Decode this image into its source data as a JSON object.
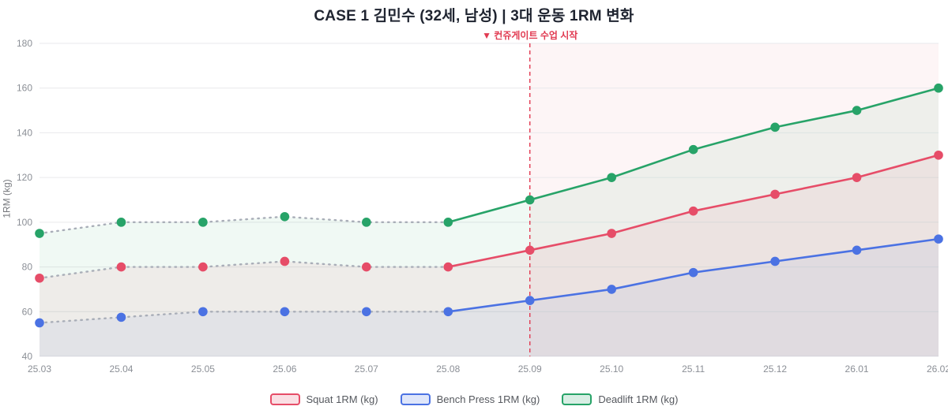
{
  "title": "CASE 1  김민수 (32세, 남성) | 3대 운동 1RM 변화",
  "annotation": {
    "label": "▼ 컨쥬게이트 수업 시작",
    "color": "#e13a51",
    "at_category": "25.09"
  },
  "chart_data": {
    "type": "line",
    "title": "CASE 1  김민수 (32세, 남성) | 3대 운동 1RM 변화",
    "ylabel": "1RM (kg)",
    "xlabel": "",
    "ylim": [
      40,
      180
    ],
    "yticks": [
      40,
      60,
      80,
      100,
      120,
      140,
      160,
      180
    ],
    "grid": true,
    "legend_position": "bottom",
    "categories": [
      "25.03",
      "25.04",
      "25.05",
      "25.06",
      "25.07",
      "25.08",
      "25.09",
      "25.10",
      "25.11",
      "25.12",
      "26.01",
      "26.02"
    ],
    "series": [
      {
        "name": "Squat 1RM (kg)",
        "color": "#e64d68",
        "values": [
          75,
          80,
          80,
          82.5,
          80,
          80,
          87.5,
          95,
          105,
          112.5,
          120,
          130
        ]
      },
      {
        "name": "Bench Press 1RM (kg)",
        "color": "#4b72e3",
        "values": [
          55,
          57.5,
          60,
          60,
          60,
          60,
          65,
          70,
          77.5,
          82.5,
          87.5,
          92.5
        ]
      },
      {
        "name": "Deadlift 1RM (kg)",
        "color": "#27a368",
        "values": [
          95,
          100,
          100,
          102.5,
          100,
          100,
          110,
          120,
          132.5,
          142.5,
          150,
          160
        ]
      }
    ],
    "pre_period": {
      "dashed_gray_until_index": 5,
      "dash_color": "#a9aeb8"
    },
    "highlight": {
      "from_category": "25.09",
      "fill": "#e13a51",
      "fill_alpha": 0.05
    },
    "area_fill_alpha": 0.07
  }
}
